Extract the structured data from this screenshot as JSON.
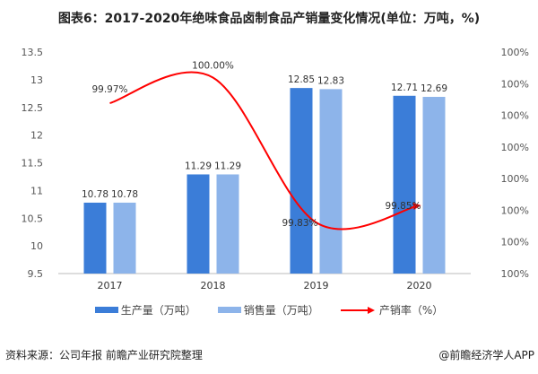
{
  "title": "图表6：2017-2020年绝味食品卤制食品产销量变化情况(单位：万吨，%)",
  "chart_data": {
    "type": "bar+line",
    "categories": [
      "2017",
      "2018",
      "2019",
      "2020"
    ],
    "series": [
      {
        "name": "生产量（万吨）",
        "type": "bar",
        "axis": "left",
        "color": "#3b7dd8",
        "values": [
          10.78,
          11.29,
          12.85,
          12.71
        ],
        "labels": [
          "10.78",
          "11.29",
          "12.85",
          "12.71"
        ]
      },
      {
        "name": "销售量（万吨）",
        "type": "bar",
        "axis": "left",
        "color": "#8db4ea",
        "values": [
          10.78,
          11.29,
          12.83,
          12.69
        ],
        "labels": [
          "10.78",
          "11.29",
          "12.83",
          "12.69"
        ]
      },
      {
        "name": "产销率（%）",
        "type": "line",
        "axis": "right",
        "color": "#ff0000",
        "values": [
          99.97,
          100.0,
          99.83,
          99.85
        ],
        "labels": [
          "99.97%",
          "100.00%",
          "99.83%",
          "99.85%"
        ]
      }
    ],
    "y_left": {
      "range": [
        9.5,
        13.5
      ],
      "ticks": [
        "9.5",
        "10",
        "10.5",
        "11",
        "11.5",
        "12",
        "12.5",
        "13",
        "13.5"
      ]
    },
    "y_right": {
      "range": [
        99.77,
        100.03
      ],
      "ticks": [
        "100%",
        "100%",
        "100%",
        "100%",
        "100%",
        "100%",
        "100%",
        "100%"
      ]
    },
    "grid": false,
    "legend": "bottom"
  },
  "source": "资料来源：公司年报 前瞻产业研究院整理",
  "brand": "@前瞻经济学人APP"
}
